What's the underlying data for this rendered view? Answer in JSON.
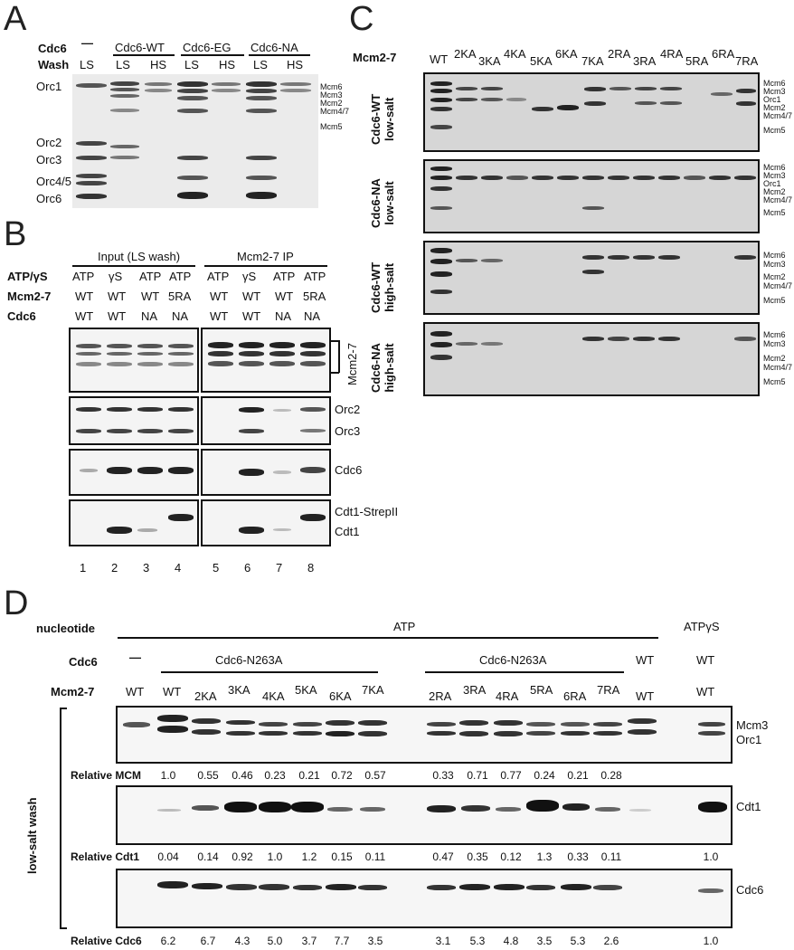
{
  "panels": {
    "A": "A",
    "B": "B",
    "C": "C",
    "D": "D"
  },
  "panelA": {
    "cdc6_label": "Cdc6",
    "wash_label": "Wash",
    "dash": "—",
    "groups": [
      "Cdc6-WT",
      "Cdc6-EG",
      "Cdc6-NA"
    ],
    "wash": [
      "LS",
      "LS",
      "HS",
      "LS",
      "HS",
      "LS",
      "HS"
    ],
    "left_markers": [
      "Orc1",
      "Orc2",
      "Orc3",
      "Orc4/5",
      "Orc6"
    ],
    "right_markers": [
      "Mcm6",
      "Mcm3",
      "Mcm2",
      "Mcm4/7",
      "Mcm5"
    ]
  },
  "panelB": {
    "input_title": "Input (LS wash)",
    "ip_title": "Mcm2-7 IP",
    "row_labels": [
      "ATP/γS",
      "Mcm2-7",
      "Cdc6"
    ],
    "nucleotide": [
      "ATP",
      "γS",
      "ATP",
      "ATP",
      "ATP",
      "γS",
      "ATP",
      "ATP"
    ],
    "mcm": [
      "WT",
      "WT",
      "WT",
      "5RA",
      "WT",
      "WT",
      "WT",
      "5RA"
    ],
    "cdc6": [
      "WT",
      "WT",
      "NA",
      "NA",
      "WT",
      "WT",
      "NA",
      "NA"
    ],
    "bracket_label": "Mcm2-7",
    "markers": [
      "Orc2",
      "Orc3",
      "Cdc6",
      "Cdt1-StrepII",
      "Cdt1"
    ],
    "lanes": [
      "1",
      "2",
      "3",
      "4",
      "5",
      "6",
      "7",
      "8"
    ]
  },
  "panelC": {
    "mcm_label": "Mcm2-7",
    "lanes": [
      "WT",
      "2KA",
      "3KA",
      "4KA",
      "5KA",
      "6KA",
      "7KA",
      "2RA",
      "3RA",
      "4RA",
      "5RA",
      "6RA",
      "7RA"
    ],
    "gels": [
      {
        "label1": "Cdc6-WT",
        "label2": "low-salt",
        "markers": [
          "Mcm6",
          "Mcm3",
          "Orc1",
          "Mcm2",
          "Mcm4/7",
          "Mcm5"
        ]
      },
      {
        "label1": "Cdc6-NA",
        "label2": "low-salt",
        "markers": [
          "Mcm6",
          "Mcm3",
          "Orc1",
          "Mcm2",
          "Mcm4/7",
          "Mcm5"
        ]
      },
      {
        "label1": "Cdc6-WT",
        "label2": "high-salt",
        "markers": [
          "Mcm6",
          "Mcm3",
          "Mcm2",
          "Mcm4/7",
          "Mcm5"
        ]
      },
      {
        "label1": "Cdc6-NA",
        "label2": "high-salt",
        "markers": [
          "Mcm6",
          "Mcm3",
          "Mcm2",
          "Mcm4/7",
          "Mcm5"
        ]
      }
    ]
  },
  "panelD": {
    "nucleotide_label": "nucleotide",
    "cdc6_label": "Cdc6",
    "mcm_label": "Mcm2-7",
    "atp": "ATP",
    "atpgs": "ATPγS",
    "dash": "—",
    "group1": "Cdc6-N263A",
    "group2": "Cdc6-N263A",
    "wt1": "WT",
    "wt2": "WT",
    "mcm_lanes": [
      "WT",
      "WT",
      "2KA",
      "3KA",
      "4KA",
      "5KA",
      "6KA",
      "7KA",
      "2RA",
      "3RA",
      "4RA",
      "5RA",
      "6RA",
      "7RA",
      "WT",
      "WT"
    ],
    "side_label": "low-salt wash",
    "markers": [
      "Mcm3",
      "Orc1",
      "Cdt1",
      "Cdc6"
    ],
    "rel_mcm_label": "Relative MCM",
    "rel_mcm": [
      "1.0",
      "0.55",
      "0.46",
      "0.23",
      "0.21",
      "0.72",
      "0.57",
      "0.33",
      "0.71",
      "0.77",
      "0.24",
      "0.21",
      "0.28"
    ],
    "rel_cdt1_label": "Relative Cdt1",
    "rel_cdt1": [
      "0.04",
      "0.14",
      "0.92",
      "1.0",
      "1.2",
      "0.15",
      "0.11",
      "0.47",
      "0.35",
      "0.12",
      "1.3",
      "0.33",
      "0.11",
      "1.0"
    ],
    "rel_cdc6_label": "Relative Cdc6",
    "rel_cdc6": [
      "6.2",
      "6.7",
      "4.3",
      "5.0",
      "3.7",
      "7.7",
      "3.5",
      "3.1",
      "5.3",
      "4.8",
      "3.5",
      "5.3",
      "2.6",
      "1.0"
    ]
  }
}
